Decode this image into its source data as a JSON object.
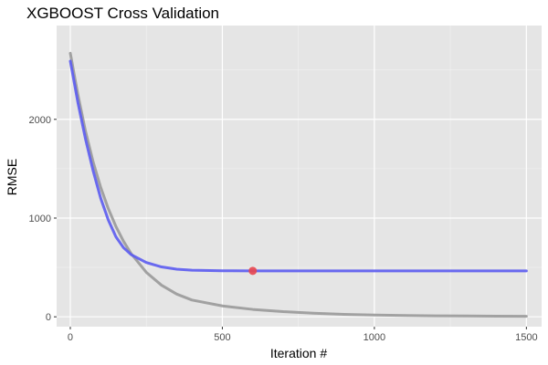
{
  "chart_data": {
    "type": "line",
    "title": "XGBOOST Cross Validation",
    "xlabel": "Iteration #",
    "ylabel": "RMSE",
    "xlim": [
      -45,
      1550
    ],
    "ylim": [
      -100,
      2950
    ],
    "x_ticks": [
      0,
      500,
      1000,
      1500
    ],
    "y_ticks": [
      0,
      1000,
      2000
    ],
    "x_minor_ticks": [
      250,
      750,
      1250
    ],
    "y_minor_ticks": [
      500,
      1500,
      2500
    ],
    "grid": true,
    "legend": "none",
    "series": [
      {
        "role": "train",
        "color": "#999999",
        "x": [
          0,
          25,
          50,
          75,
          100,
          125,
          150,
          175,
          200,
          250,
          300,
          350,
          400,
          500,
          600,
          700,
          800,
          900,
          1000,
          1100,
          1200,
          1300,
          1400,
          1500
        ],
        "values": [
          2670,
          2250,
          1880,
          1570,
          1310,
          1095,
          915,
          765,
          640,
          450,
          320,
          230,
          170,
          110,
          75,
          52,
          36,
          25,
          18,
          13,
          10,
          8,
          6,
          5
        ]
      },
      {
        "role": "test",
        "color": "#5b5bf0",
        "x": [
          0,
          25,
          50,
          75,
          100,
          125,
          150,
          175,
          200,
          250,
          300,
          350,
          400,
          500,
          600,
          700,
          800,
          900,
          1000,
          1100,
          1200,
          1300,
          1400,
          1500
        ],
        "values": [
          2590,
          2170,
          1800,
          1480,
          1200,
          980,
          810,
          700,
          630,
          550,
          505,
          482,
          472,
          466,
          465,
          465,
          465,
          465,
          465,
          465,
          465,
          465,
          465,
          465
        ]
      }
    ],
    "highlight_point": {
      "x": 600,
      "y": 465,
      "color": "#e8464f"
    }
  }
}
